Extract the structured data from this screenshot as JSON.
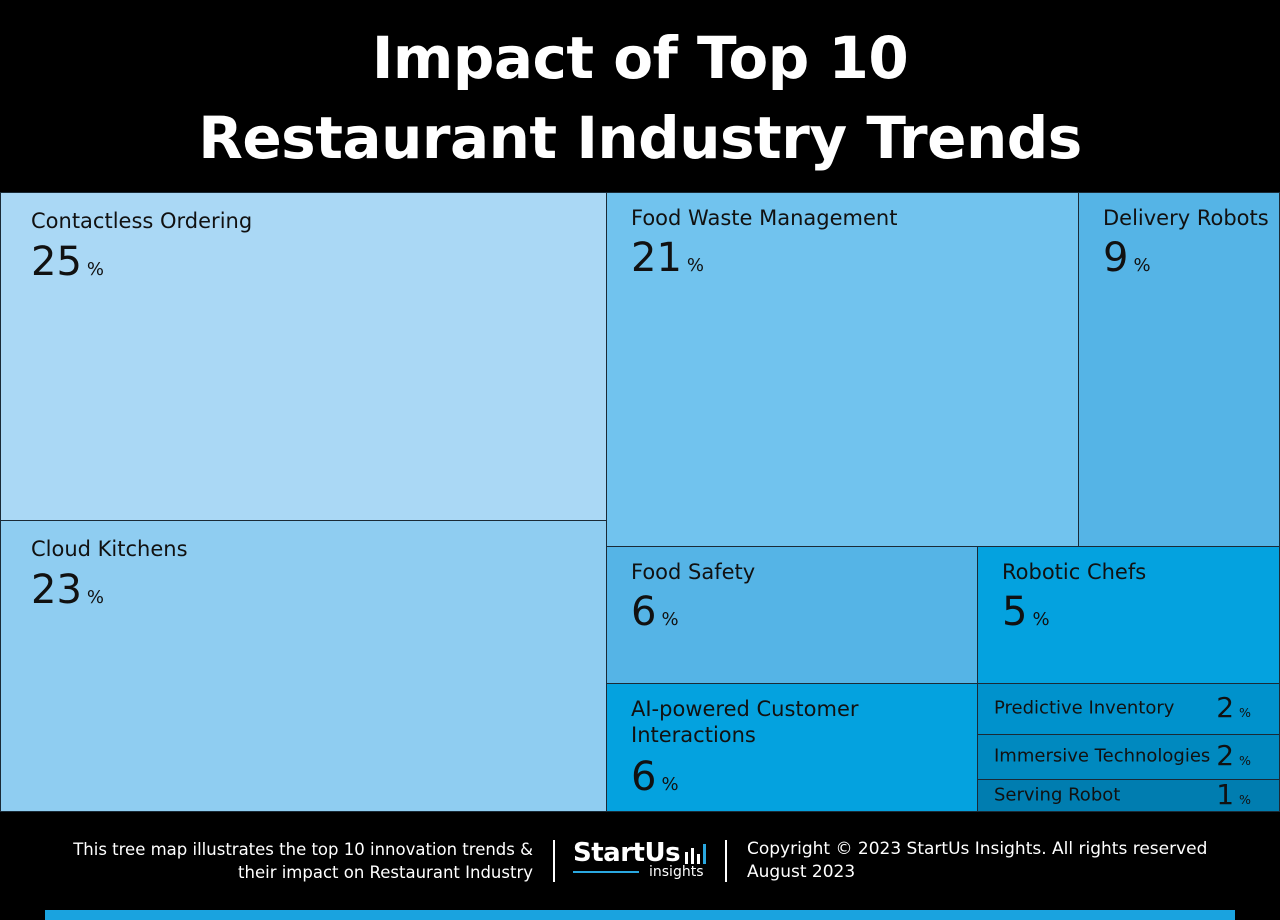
{
  "title": {
    "line1": "Impact of Top 10",
    "line2": "Restaurant Industry Trends"
  },
  "chart_data": {
    "type": "treemap",
    "title": "Impact of Top 10 Restaurant Industry Trends",
    "unit": "%",
    "items": [
      {
        "label": "Contactless Ordering",
        "value": 25,
        "color": "#aad8f5"
      },
      {
        "label": "Cloud Kitchens",
        "value": 23,
        "color": "#8fcdf1"
      },
      {
        "label": "Food Waste Management",
        "value": 21,
        "color": "#71c3ee"
      },
      {
        "label": "Delivery Robots",
        "value": 9,
        "color": "#55b4e6"
      },
      {
        "label": "Food Safety",
        "value": 6,
        "color": "#55b4e6"
      },
      {
        "label": "Robotic Chefs",
        "value": 5,
        "color": "#04a2df"
      },
      {
        "label": "AI-powered Customer Interactions",
        "value": 6,
        "color": "#04a2df"
      },
      {
        "label": "Predictive Inventory",
        "value": 2,
        "color": "#0092cc"
      },
      {
        "label": "Immersive Technologies",
        "value": 2,
        "color": "#0089bf"
      },
      {
        "label": "Serving Robot",
        "value": 1,
        "color": "#007db0"
      }
    ]
  },
  "footer": {
    "description_line1": "This tree map illustrates the top 10 innovation trends &",
    "description_line2": "their impact on Restaurant Industry",
    "brand_name": "StartUs",
    "brand_sub": "insights",
    "copyright": "Copyright © 2023 StartUs Insights. All rights reserved",
    "date": "August 2023",
    "accent_color": "#1aa3df"
  }
}
